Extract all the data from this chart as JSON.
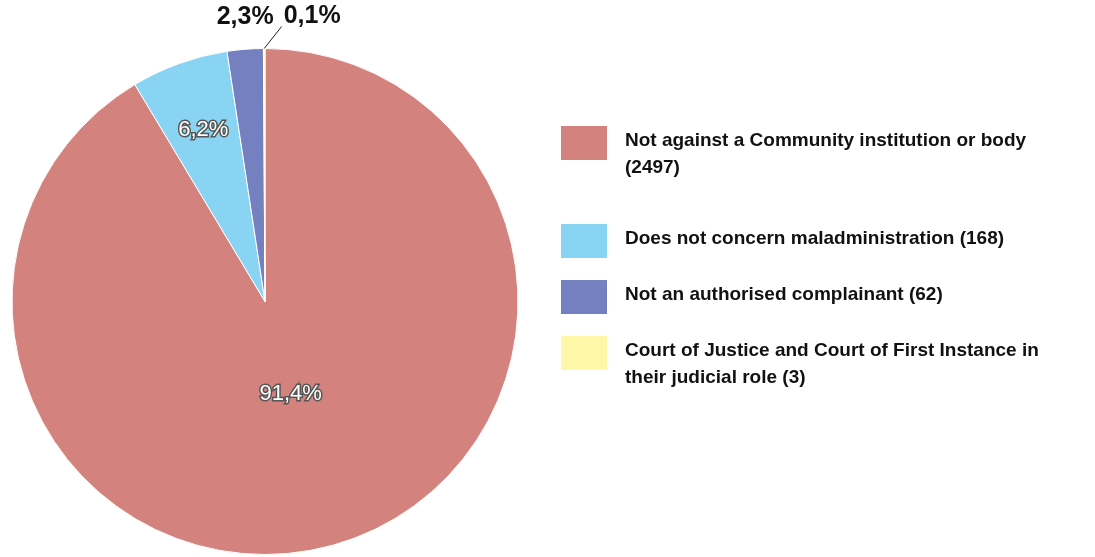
{
  "chart_data": {
    "type": "pie",
    "categories": [
      "Not against a Community institution or body (2497)",
      "Does not concern maladministration (168)",
      "Not an authorised complainant (62)",
      "Court of Justice and Court of First Instance in their judicial role (3)"
    ],
    "values": [
      91.4,
      6.2,
      2.3,
      0.1
    ],
    "colors": [
      "#d4827e",
      "#89d3f3",
      "#7580c0",
      "#fff7a8"
    ],
    "value_labels": [
      "91,4%",
      "6,2%",
      "2,3%",
      "0,1%"
    ],
    "legend": "right"
  }
}
